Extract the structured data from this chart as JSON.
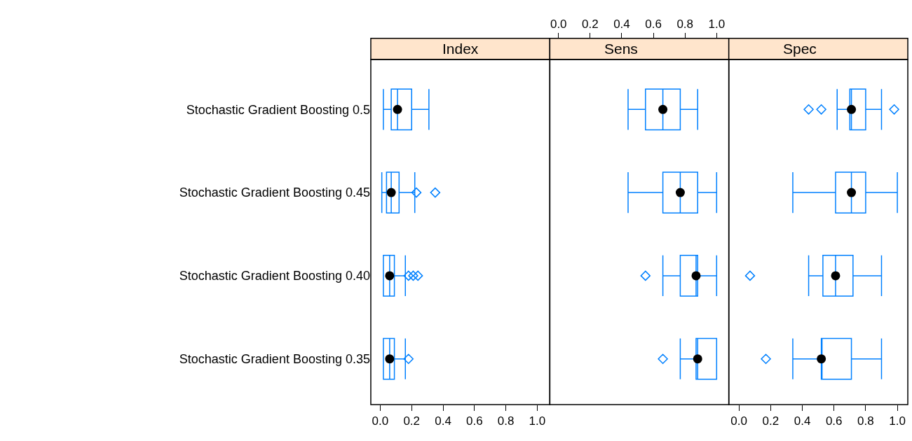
{
  "chart_data": [
    {
      "type": "box",
      "orientation": "horizontal",
      "title": "Index",
      "color": "#0080ff",
      "categories": [
        "Stochastic Gradient Boosting 0.5",
        "Stochastic Gradient Boosting 0.45",
        "Stochastic Gradient Boosting 0.40",
        "Stochastic Gradient Boosting 0.35"
      ],
      "xlim": [
        -0.06,
        1.08
      ],
      "xticks": [
        {
          "value": 0,
          "label": "0.0"
        },
        {
          "value": 0.2,
          "label": "0.2"
        },
        {
          "value": 0.4,
          "label": "0.4"
        },
        {
          "value": 0.6,
          "label": "0.6"
        },
        {
          "value": 0.8,
          "label": "0.8"
        },
        {
          "value": 1,
          "label": "1.0"
        }
      ],
      "boxes": [
        {
          "low": 0.02,
          "q1": 0.07,
          "median": 0.11,
          "q3": 0.2,
          "high": 0.31
        },
        {
          "low": 0.01,
          "q1": 0.04,
          "median": 0.07,
          "q3": 0.12,
          "high": 0.22,
          "outliers": [
            0.23,
            0.35
          ]
        },
        {
          "low": 0.02,
          "q1": 0.02,
          "median": 0.06,
          "q3": 0.09,
          "high": 0.16,
          "outliers": [
            0.18,
            0.21,
            0.24
          ]
        },
        {
          "low": 0.02,
          "q1": 0.02,
          "median": 0.06,
          "q3": 0.09,
          "high": 0.16,
          "outliers": [
            0.18
          ]
        }
      ]
    },
    {
      "type": "box",
      "orientation": "horizontal",
      "title": "Sens",
      "color": "#0080ff",
      "tick_labels": "x",
      "categories": [
        "Stochastic Gradient Boosting 0.5",
        "Stochastic Gradient Boosting 0.45",
        "Stochastic Gradient Boosting 0.40",
        "Stochastic Gradient Boosting 0.35"
      ],
      "xlim": [
        -0.055,
        1.077
      ],
      "xticks": [
        {
          "value": 0,
          "label": "0.0"
        },
        {
          "value": 0.2,
          "label": "0.2"
        },
        {
          "value": 0.4,
          "label": "0.4"
        },
        {
          "value": 0.6,
          "label": "0.6"
        },
        {
          "value": 0.8,
          "label": "0.8"
        },
        {
          "value": 1,
          "label": "1.0"
        }
      ],
      "boxes": [
        {
          "low": 0.44,
          "q1": 0.55,
          "median": 0.66,
          "q3": 0.77,
          "high": 0.88
        },
        {
          "low": 0.44,
          "q1": 0.66,
          "median": 0.77,
          "q3": 0.88,
          "high": 1.0
        },
        {
          "low": 0.66,
          "q1": 0.77,
          "median": 0.87,
          "q3": 0.88,
          "high": 1.0,
          "outliers": [
            0.55
          ]
        },
        {
          "low": 0.77,
          "q1": 0.87,
          "median": 0.88,
          "q3": 1.0,
          "high": 1.0,
          "outliers": [
            0.66
          ]
        }
      ]
    },
    {
      "type": "box",
      "orientation": "horizontal",
      "title": "Spec",
      "color": "#0080ff",
      "tick_labels": "x",
      "categories": [
        "Stochastic Gradient Boosting 0.5",
        "Stochastic Gradient Boosting 0.45",
        "Stochastic Gradient Boosting 0.40",
        "Stochastic Gradient Boosting 0.35"
      ],
      "xlim": [
        -0.064,
        1.066
      ],
      "xticks": [
        {
          "value": 0,
          "label": "0.0"
        },
        {
          "value": 0.2,
          "label": "0.2"
        },
        {
          "value": 0.4,
          "label": "0.4"
        },
        {
          "value": 0.6,
          "label": "0.6"
        },
        {
          "value": 0.8,
          "label": "0.8"
        },
        {
          "value": 1,
          "label": "1.0"
        }
      ],
      "boxes": [
        {
          "low": 0.62,
          "q1": 0.7,
          "median": 0.71,
          "q3": 0.8,
          "high": 0.9,
          "outliers": [
            0.44,
            0.52,
            0.98
          ]
        },
        {
          "low": 0.34,
          "q1": 0.61,
          "median": 0.71,
          "q3": 0.8,
          "high": 1.0
        },
        {
          "low": 0.44,
          "q1": 0.53,
          "median": 0.61,
          "q3": 0.72,
          "high": 0.9,
          "outliers": [
            0.07
          ]
        },
        {
          "low": 0.34,
          "q1": 0.52,
          "median": 0.52,
          "q3": 0.71,
          "high": 0.9,
          "outliers": [
            0.17
          ]
        }
      ]
    }
  ]
}
